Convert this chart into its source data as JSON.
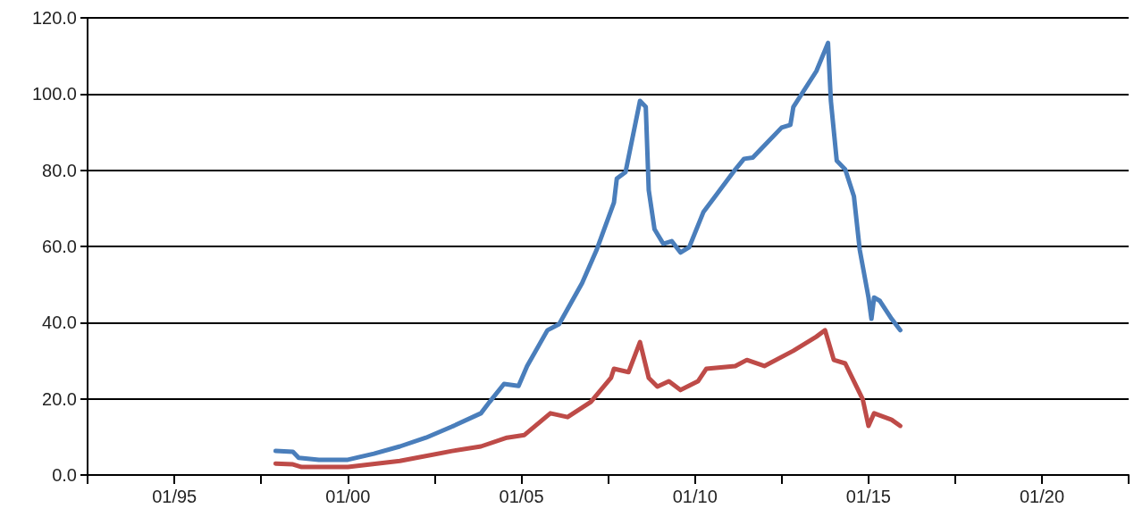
{
  "chart_data": {
    "type": "line",
    "xlim": [
      "1992-07",
      "2022-07"
    ],
    "xticks": [
      {
        "value": "1992-07",
        "label": null
      },
      {
        "value": "1995-01",
        "label": "01/95"
      },
      {
        "value": "1997-07",
        "label": null
      },
      {
        "value": "2000-01",
        "label": "01/00"
      },
      {
        "value": "2002-07",
        "label": null
      },
      {
        "value": "2005-01",
        "label": "01/05"
      },
      {
        "value": "2007-07",
        "label": null
      },
      {
        "value": "2010-01",
        "label": "01/10"
      },
      {
        "value": "2012-07",
        "label": null
      },
      {
        "value": "2015-01",
        "label": "01/15"
      },
      {
        "value": "2017-07",
        "label": null
      },
      {
        "value": "2020-01",
        "label": "01/20"
      },
      {
        "value": "2022-07",
        "label": null
      }
    ],
    "ylim": [
      0,
      120
    ],
    "yticks": [
      {
        "value": 0,
        "label": "0.0"
      },
      {
        "value": 20,
        "label": "20.0"
      },
      {
        "value": 40,
        "label": "40.0"
      },
      {
        "value": 60,
        "label": "60.0"
      },
      {
        "value": 80,
        "label": "80.0"
      },
      {
        "value": 100,
        "label": "100.0"
      },
      {
        "value": 120,
        "label": "120.0"
      }
    ],
    "grid": "y",
    "marker": "none",
    "line_style": "solid",
    "series": [
      {
        "color": "#4a7ebb",
        "x": [
          "1997-12",
          "1998-06",
          "1998-08",
          "1999-03",
          "2000-01",
          "2000-10",
          "2001-07",
          "2002-04",
          "2003-01",
          "2003-11",
          "2004-02",
          "2004-07",
          "2004-12",
          "2005-03",
          "2005-10",
          "2006-02",
          "2006-10",
          "2007-03",
          "2007-09",
          "2007-10",
          "2008-01",
          "2008-06",
          "2008-08",
          "2008-09",
          "2008-11",
          "2009-02",
          "2009-05",
          "2009-08",
          "2009-11",
          "2010-04",
          "2010-08",
          "2011-03",
          "2011-06",
          "2011-09",
          "2012-01",
          "2012-07",
          "2012-10",
          "2012-11",
          "2013-07",
          "2013-11",
          "2013-12",
          "2014-02",
          "2014-05",
          "2014-08",
          "2014-10",
          "2015-01",
          "2015-02",
          "2015-03",
          "2015-05",
          "2015-09",
          "2015-12"
        ],
        "values": [
          6.3,
          6.1,
          4.5,
          4.0,
          4.0,
          5.6,
          7.5,
          9.8,
          12.7,
          16.2,
          19.2,
          23.9,
          23.4,
          28.6,
          38,
          39.6,
          50.4,
          59,
          71.5,
          77.8,
          79.5,
          98.2,
          96.6,
          74.8,
          64.5,
          60.7,
          61.4,
          58.4,
          59.8,
          69.1,
          73.1,
          80.2,
          83,
          83.3,
          86.5,
          91.2,
          91.9,
          96.6,
          106,
          113.4,
          98.2,
          82.5,
          80.2,
          73.1,
          59.1,
          46.6,
          41,
          46.6,
          45.7,
          41,
          38
        ]
      },
      {
        "color": "#be4b48",
        "x": [
          "1997-12",
          "1998-06",
          "1998-09",
          "2000-01",
          "2001-07",
          "2003-01",
          "2003-11",
          "2004-08",
          "2005-02",
          "2005-11",
          "2006-05",
          "2007-01",
          "2007-08",
          "2007-09",
          "2008-02",
          "2008-06",
          "2008-09",
          "2008-12",
          "2009-04",
          "2009-08",
          "2010-02",
          "2010-05",
          "2011-03",
          "2011-07",
          "2012-01",
          "2012-11",
          "2013-07",
          "2013-10",
          "2014-01",
          "2014-05",
          "2014-08",
          "2014-11",
          "2015-01",
          "2015-03",
          "2015-09",
          "2015-12"
        ],
        "values": [
          3.0,
          2.8,
          2.1,
          2.1,
          3.7,
          6.3,
          7.5,
          9.8,
          10.5,
          16.2,
          15.2,
          19.2,
          25.5,
          27.9,
          27,
          34.9,
          25.5,
          23.2,
          24.6,
          22.3,
          24.6,
          27.9,
          28.6,
          30.2,
          28.6,
          32.6,
          36.3,
          38,
          30.2,
          29.3,
          24.6,
          19.9,
          12.9,
          16.2,
          14.5,
          12.9
        ]
      }
    ]
  }
}
